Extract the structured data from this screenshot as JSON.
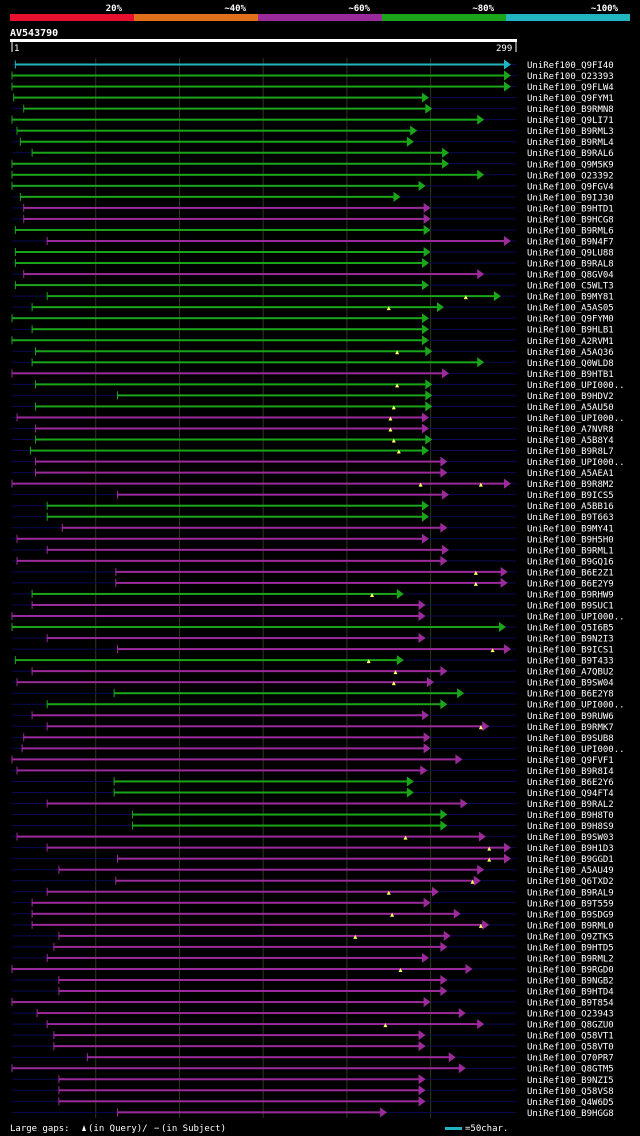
{
  "chart_data": {
    "type": "alignment-overview",
    "title": "AV543790",
    "query_start_label": "1",
    "query_end_label": "299",
    "query_length": 299,
    "identity_legend": [
      {
        "label": "20%",
        "color": "#e8102e"
      },
      {
        "label": "~40%",
        "color": "#e0701a"
      },
      {
        "label": "~60%",
        "color": "#9b2b9b"
      },
      {
        "label": "~80%",
        "color": "#1aa51a"
      },
      {
        "label": "~100%",
        "color": "#20b5c0"
      }
    ],
    "footer_legend": {
      "gaps_prefix": "Large gaps:",
      "query_gap_text": "(in Query)/",
      "subject_gap_text": "(in Subject)",
      "scale_text": "=50char."
    },
    "hits": [
      {
        "name": "UniRef100_Q9FI40",
        "start": 3,
        "end": 299,
        "identity": "~100%",
        "query_gaps": []
      },
      {
        "name": "UniRef100_O23393",
        "start": 1,
        "end": 299,
        "identity": "~80%",
        "query_gaps": []
      },
      {
        "name": "UniRef100_Q9FLW4",
        "start": 1,
        "end": 299,
        "identity": "~80%",
        "query_gaps": []
      },
      {
        "name": "UniRef100_Q9FYM1",
        "start": 2,
        "end": 250,
        "identity": "~80%",
        "query_gaps": []
      },
      {
        "name": "UniRef100_B9RMN8",
        "start": 8,
        "end": 252,
        "identity": "~80%",
        "query_gaps": []
      },
      {
        "name": "UniRef100_Q9LI71",
        "start": 1,
        "end": 283,
        "identity": "~80%",
        "query_gaps": []
      },
      {
        "name": "UniRef100_B9RML3",
        "start": 4,
        "end": 243,
        "identity": "~80%",
        "query_gaps": []
      },
      {
        "name": "UniRef100_B9RML4",
        "start": 6,
        "end": 241,
        "identity": "~80%",
        "query_gaps": []
      },
      {
        "name": "UniRef100_B9RAL6",
        "start": 13,
        "end": 262,
        "identity": "~80%",
        "query_gaps": []
      },
      {
        "name": "UniRef100_Q9M5K9",
        "start": 1,
        "end": 262,
        "identity": "~80%",
        "query_gaps": []
      },
      {
        "name": "UniRef100_O23392",
        "start": 1,
        "end": 283,
        "identity": "~80%",
        "query_gaps": []
      },
      {
        "name": "UniRef100_Q9FGV4",
        "start": 1,
        "end": 248,
        "identity": "~80%",
        "query_gaps": []
      },
      {
        "name": "UniRef100_B9IJ30",
        "start": 6,
        "end": 233,
        "identity": "~80%",
        "query_gaps": []
      },
      {
        "name": "UniRef100_B9HTD1",
        "start": 8,
        "end": 251,
        "identity": "~60%",
        "query_gaps": []
      },
      {
        "name": "UniRef100_B9HCG8",
        "start": 8,
        "end": 251,
        "identity": "~60%",
        "query_gaps": []
      },
      {
        "name": "UniRef100_B9RML6",
        "start": 3,
        "end": 251,
        "identity": "~80%",
        "query_gaps": []
      },
      {
        "name": "UniRef100_B9N4F7",
        "start": 22,
        "end": 299,
        "identity": "~60%",
        "query_gaps": []
      },
      {
        "name": "UniRef100_Q9LU88",
        "start": 3,
        "end": 251,
        "identity": "~80%",
        "query_gaps": []
      },
      {
        "name": "UniRef100_B9RAL8",
        "start": 3,
        "end": 250,
        "identity": "~80%",
        "query_gaps": []
      },
      {
        "name": "UniRef100_Q8GV04",
        "start": 8,
        "end": 283,
        "identity": "~60%",
        "query_gaps": []
      },
      {
        "name": "UniRef100_C5WLT3",
        "start": 3,
        "end": 250,
        "identity": "~80%",
        "query_gaps": []
      },
      {
        "name": "UniRef100_B9MY81",
        "start": 22,
        "end": 293,
        "identity": "~80%",
        "query_gaps": [
          272
        ]
      },
      {
        "name": "UniRef100_A5AS05",
        "start": 13,
        "end": 259,
        "identity": "~80%",
        "query_gaps": [
          226
        ]
      },
      {
        "name": "UniRef100_Q9FYM0",
        "start": 1,
        "end": 250,
        "identity": "~80%",
        "query_gaps": []
      },
      {
        "name": "UniRef100_B9HLB1",
        "start": 13,
        "end": 250,
        "identity": "~80%",
        "query_gaps": []
      },
      {
        "name": "UniRef100_A2RVM1",
        "start": 1,
        "end": 250,
        "identity": "~80%",
        "query_gaps": []
      },
      {
        "name": "UniRef100_A5AQ36",
        "start": 15,
        "end": 252,
        "identity": "~80%",
        "query_gaps": [
          231
        ]
      },
      {
        "name": "UniRef100_Q0WLD8",
        "start": 13,
        "end": 283,
        "identity": "~80%",
        "query_gaps": []
      },
      {
        "name": "UniRef100_B9HTB1",
        "start": 1,
        "end": 262,
        "identity": "~60%",
        "query_gaps": []
      },
      {
        "name": "UniRef100_UPI000..",
        "start": 15,
        "end": 252,
        "identity": "~80%",
        "query_gaps": [
          231
        ]
      },
      {
        "name": "UniRef100_B9HDV2",
        "start": 64,
        "end": 252,
        "identity": "~80%",
        "query_gaps": []
      },
      {
        "name": "UniRef100_A5AU50",
        "start": 15,
        "end": 252,
        "identity": "~80%",
        "query_gaps": [
          229
        ]
      },
      {
        "name": "UniRef100_UPI000..",
        "start": 4,
        "end": 250,
        "identity": "~60%",
        "query_gaps": [
          227
        ]
      },
      {
        "name": "UniRef100_A7NVR8",
        "start": 15,
        "end": 250,
        "identity": "~60%",
        "query_gaps": [
          227
        ]
      },
      {
        "name": "UniRef100_A5B8Y4",
        "start": 15,
        "end": 252,
        "identity": "~80%",
        "query_gaps": [
          229
        ]
      },
      {
        "name": "UniRef100_B9R8L7",
        "start": 12,
        "end": 250,
        "identity": "~80%",
        "query_gaps": [
          232
        ]
      },
      {
        "name": "UniRef100_UPI000..",
        "start": 15,
        "end": 261,
        "identity": "~60%",
        "query_gaps": []
      },
      {
        "name": "UniRef100_A5AEA1",
        "start": 15,
        "end": 261,
        "identity": "~60%",
        "query_gaps": []
      },
      {
        "name": "UniRef100_B9R8M2",
        "start": 1,
        "end": 299,
        "identity": "~60%",
        "query_gaps": [
          245,
          281
        ]
      },
      {
        "name": "UniRef100_B9ICS5",
        "start": 64,
        "end": 262,
        "identity": "~60%",
        "query_gaps": []
      },
      {
        "name": "UniRef100_A5BB16",
        "start": 22,
        "end": 250,
        "identity": "~80%",
        "query_gaps": []
      },
      {
        "name": "UniRef100_B9T663",
        "start": 22,
        "end": 250,
        "identity": "~80%",
        "query_gaps": []
      },
      {
        "name": "UniRef100_B9MY41",
        "start": 31,
        "end": 261,
        "identity": "~60%",
        "query_gaps": []
      },
      {
        "name": "UniRef100_B9H5H0",
        "start": 4,
        "end": 250,
        "identity": "~60%",
        "query_gaps": []
      },
      {
        "name": "UniRef100_B9RML1",
        "start": 22,
        "end": 262,
        "identity": "~60%",
        "query_gaps": []
      },
      {
        "name": "UniRef100_B9GQ16",
        "start": 4,
        "end": 261,
        "identity": "~60%",
        "query_gaps": []
      },
      {
        "name": "UniRef100_B6E2Z1",
        "start": 63,
        "end": 297,
        "identity": "~60%",
        "query_gaps": [
          278
        ]
      },
      {
        "name": "UniRef100_B6E2Y9",
        "start": 63,
        "end": 297,
        "identity": "~60%",
        "query_gaps": [
          278
        ]
      },
      {
        "name": "UniRef100_B9RHW9",
        "start": 13,
        "end": 235,
        "identity": "~80%",
        "query_gaps": [
          216
        ]
      },
      {
        "name": "UniRef100_B9SUC1",
        "start": 13,
        "end": 248,
        "identity": "~60%",
        "query_gaps": []
      },
      {
        "name": "UniRef100_UPI000..",
        "start": 1,
        "end": 248,
        "identity": "~60%",
        "query_gaps": []
      },
      {
        "name": "UniRef100_Q5I6B5",
        "start": 1,
        "end": 296,
        "identity": "~80%",
        "query_gaps": []
      },
      {
        "name": "UniRef100_B9N2I3",
        "start": 22,
        "end": 248,
        "identity": "~60%",
        "query_gaps": []
      },
      {
        "name": "UniRef100_B9ICS1",
        "start": 64,
        "end": 299,
        "identity": "~60%",
        "query_gaps": [
          288
        ]
      },
      {
        "name": "UniRef100_B9T433",
        "start": 3,
        "end": 235,
        "identity": "~80%",
        "query_gaps": [
          214
        ]
      },
      {
        "name": "UniRef100_A7QBU2",
        "start": 13,
        "end": 261,
        "identity": "~60%",
        "query_gaps": [
          230
        ]
      },
      {
        "name": "UniRef100_B9SW04",
        "start": 4,
        "end": 253,
        "identity": "~60%",
        "query_gaps": [
          229
        ]
      },
      {
        "name": "UniRef100_B6E2Y8",
        "start": 62,
        "end": 271,
        "identity": "~80%",
        "query_gaps": []
      },
      {
        "name": "UniRef100_UPI000..",
        "start": 22,
        "end": 261,
        "identity": "~80%",
        "query_gaps": []
      },
      {
        "name": "UniRef100_B9RUW6",
        "start": 13,
        "end": 250,
        "identity": "~60%",
        "query_gaps": []
      },
      {
        "name": "UniRef100_B9RMK7",
        "start": 22,
        "end": 286,
        "identity": "~60%",
        "query_gaps": [
          281
        ]
      },
      {
        "name": "UniRef100_B9SUB8",
        "start": 8,
        "end": 251,
        "identity": "~60%",
        "query_gaps": []
      },
      {
        "name": "UniRef100_UPI000..",
        "start": 7,
        "end": 251,
        "identity": "~60%",
        "query_gaps": []
      },
      {
        "name": "UniRef100_Q9FVF1",
        "start": 1,
        "end": 270,
        "identity": "~60%",
        "query_gaps": []
      },
      {
        "name": "UniRef100_B9R8I4",
        "start": 4,
        "end": 249,
        "identity": "~60%",
        "query_gaps": []
      },
      {
        "name": "UniRef100_B6E2Y6",
        "start": 62,
        "end": 241,
        "identity": "~80%",
        "query_gaps": []
      },
      {
        "name": "UniRef100_Q94FT4",
        "start": 62,
        "end": 241,
        "identity": "~80%",
        "query_gaps": []
      },
      {
        "name": "UniRef100_B9RAL2",
        "start": 22,
        "end": 273,
        "identity": "~60%",
        "query_gaps": []
      },
      {
        "name": "UniRef100_B9H8T0",
        "start": 73,
        "end": 261,
        "identity": "~80%",
        "query_gaps": []
      },
      {
        "name": "UniRef100_B9H8S9",
        "start": 73,
        "end": 261,
        "identity": "~80%",
        "query_gaps": []
      },
      {
        "name": "UniRef100_B9SW03",
        "start": 4,
        "end": 284,
        "identity": "~60%",
        "query_gaps": [
          236
        ]
      },
      {
        "name": "UniRef100_B9H1D3",
        "start": 22,
        "end": 299,
        "identity": "~60%",
        "query_gaps": [
          286
        ]
      },
      {
        "name": "UniRef100_B9GGD1",
        "start": 64,
        "end": 299,
        "identity": "~60%",
        "query_gaps": [
          286
        ]
      },
      {
        "name": "UniRef100_A5AU49",
        "start": 29,
        "end": 283,
        "identity": "~60%",
        "query_gaps": []
      },
      {
        "name": "UniRef100_Q6TXD2",
        "start": 63,
        "end": 281,
        "identity": "~60%",
        "query_gaps": [
          276
        ]
      },
      {
        "name": "UniRef100_B9RAL9",
        "start": 22,
        "end": 256,
        "identity": "~60%",
        "query_gaps": [
          226
        ]
      },
      {
        "name": "UniRef100_B9T559",
        "start": 13,
        "end": 251,
        "identity": "~60%",
        "query_gaps": []
      },
      {
        "name": "UniRef100_B9SDG9",
        "start": 13,
        "end": 269,
        "identity": "~60%",
        "query_gaps": [
          228
        ]
      },
      {
        "name": "UniRef100_B9RML0",
        "start": 13,
        "end": 286,
        "identity": "~60%",
        "query_gaps": [
          281
        ]
      },
      {
        "name": "UniRef100_Q9ZTK5",
        "start": 29,
        "end": 263,
        "identity": "~60%",
        "query_gaps": [
          206
        ]
      },
      {
        "name": "UniRef100_B9HTD5",
        "start": 26,
        "end": 261,
        "identity": "~60%",
        "query_gaps": []
      },
      {
        "name": "UniRef100_B9RML2",
        "start": 22,
        "end": 250,
        "identity": "~60%",
        "query_gaps": []
      },
      {
        "name": "UniRef100_B9RGD0",
        "start": 1,
        "end": 276,
        "identity": "~60%",
        "query_gaps": [
          233
        ]
      },
      {
        "name": "UniRef100_B9NGB2",
        "start": 29,
        "end": 261,
        "identity": "~60%",
        "query_gaps": []
      },
      {
        "name": "UniRef100_B9HTD4",
        "start": 29,
        "end": 261,
        "identity": "~60%",
        "query_gaps": []
      },
      {
        "name": "UniRef100_B9T854",
        "start": 1,
        "end": 251,
        "identity": "~60%",
        "query_gaps": []
      },
      {
        "name": "UniRef100_O23943",
        "start": 16,
        "end": 272,
        "identity": "~60%",
        "query_gaps": []
      },
      {
        "name": "UniRef100_Q8GZU0",
        "start": 22,
        "end": 283,
        "identity": "~60%",
        "query_gaps": [
          224
        ]
      },
      {
        "name": "UniRef100_Q58VT1",
        "start": 26,
        "end": 248,
        "identity": "~60%",
        "query_gaps": []
      },
      {
        "name": "UniRef100_Q58VT0",
        "start": 26,
        "end": 248,
        "identity": "~60%",
        "query_gaps": []
      },
      {
        "name": "UniRef100_Q70PR7",
        "start": 46,
        "end": 266,
        "identity": "~60%",
        "query_gaps": []
      },
      {
        "name": "UniRef100_Q8GTM5",
        "start": 1,
        "end": 272,
        "identity": "~60%",
        "query_gaps": []
      },
      {
        "name": "UniRef100_B9NZI5",
        "start": 29,
        "end": 248,
        "identity": "~60%",
        "query_gaps": []
      },
      {
        "name": "UniRef100_Q58VS8",
        "start": 29,
        "end": 248,
        "identity": "~60%",
        "query_gaps": []
      },
      {
        "name": "UniRef100_Q4W6D5",
        "start": 29,
        "end": 248,
        "identity": "~60%",
        "query_gaps": []
      },
      {
        "name": "UniRef100_B9HGG8",
        "start": 64,
        "end": 225,
        "identity": "~60%",
        "query_gaps": []
      }
    ]
  },
  "colors": {
    "background": "#000000",
    "text": "#ffffff",
    "row_track": "#0a0a55",
    "grid": "#2a3a1a",
    "gap_marker": "#ffff66",
    "scale_bar": "#20b5c0"
  }
}
